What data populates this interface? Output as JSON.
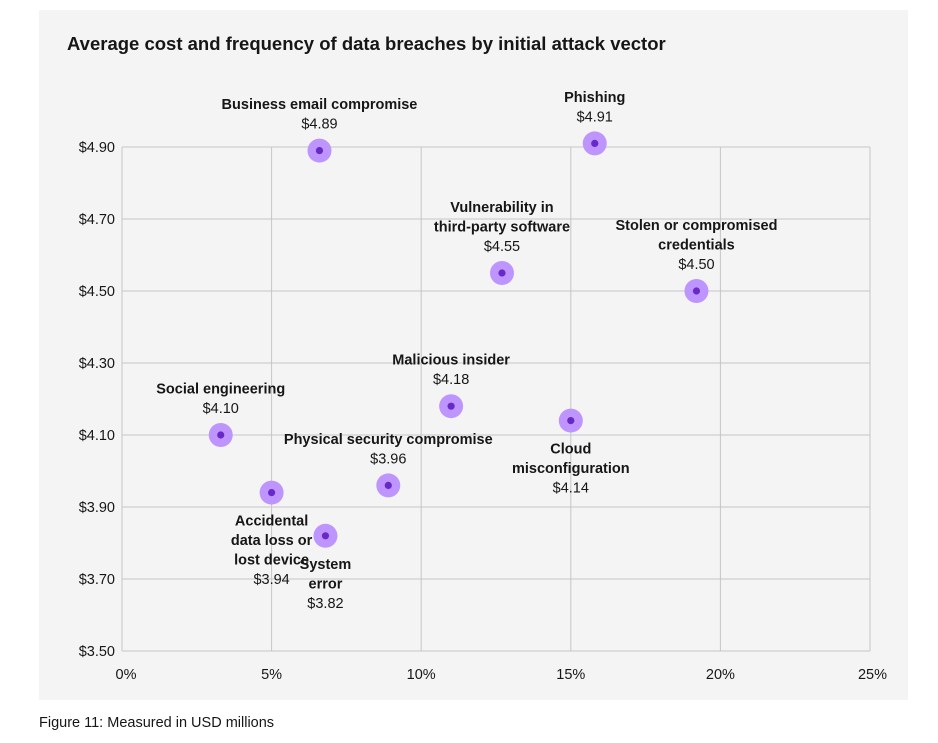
{
  "colors": {
    "panel_background": "#f4f4f4",
    "gridline": "#c6c6c6",
    "marker_outer": "#be95ff",
    "marker_inner": "#6929c4",
    "text": "#161616"
  },
  "chart_data": {
    "type": "scatter",
    "title": "Average cost and frequency of data breaches by initial attack vector",
    "xlabel": "",
    "ylabel": "",
    "xlim": [
      0,
      25
    ],
    "ylim": [
      3.5,
      4.9
    ],
    "x_ticks": [
      0,
      5,
      10,
      15,
      20,
      25
    ],
    "x_tick_labels": [
      "0%",
      "5%",
      "10%",
      "15%",
      "20%",
      "25%"
    ],
    "y_ticks": [
      3.5,
      3.7,
      3.9,
      4.1,
      4.3,
      4.5,
      4.7,
      4.9
    ],
    "y_tick_labels": [
      "$3.50",
      "$3.70",
      "$3.90",
      "$4.10",
      "$4.30",
      "$4.50",
      "$4.70",
      "$4.90"
    ],
    "grid": true,
    "legend": "none",
    "points": [
      {
        "label_lines": [
          "Business email compromise"
        ],
        "value_label": "$4.89",
        "x": 6.6,
        "y": 4.89,
        "label_pos": "above"
      },
      {
        "label_lines": [
          "Phishing"
        ],
        "value_label": "$4.91",
        "x": 15.8,
        "y": 4.91,
        "label_pos": "above"
      },
      {
        "label_lines": [
          "Vulnerability in",
          "third-party software"
        ],
        "value_label": "$4.55",
        "x": 12.7,
        "y": 4.55,
        "label_pos": "above"
      },
      {
        "label_lines": [
          "Stolen or compromised",
          "credentials"
        ],
        "value_label": "$4.50",
        "x": 19.2,
        "y": 4.5,
        "label_pos": "above"
      },
      {
        "label_lines": [
          "Malicious insider"
        ],
        "value_label": "$4.18",
        "x": 11.0,
        "y": 4.18,
        "label_pos": "above"
      },
      {
        "label_lines": [
          "Social engineering"
        ],
        "value_label": "$4.10",
        "x": 3.3,
        "y": 4.1,
        "label_pos": "above"
      },
      {
        "label_lines": [
          "Cloud",
          "misconfiguration"
        ],
        "value_label": "$4.14",
        "x": 15.0,
        "y": 4.14,
        "label_pos": "below"
      },
      {
        "label_lines": [
          "Physical security compromise"
        ],
        "value_label": "$3.96",
        "x": 8.9,
        "y": 3.96,
        "label_pos": "above"
      },
      {
        "label_lines": [
          "Accidental",
          "data loss or",
          "lost device"
        ],
        "value_label": "$3.94",
        "x": 5.0,
        "y": 3.94,
        "label_pos": "below"
      },
      {
        "label_lines": [
          "System",
          "error"
        ],
        "value_label": "$3.82",
        "x": 6.8,
        "y": 3.82,
        "label_pos": "below"
      }
    ]
  },
  "caption": "Figure 11: Measured in USD millions"
}
